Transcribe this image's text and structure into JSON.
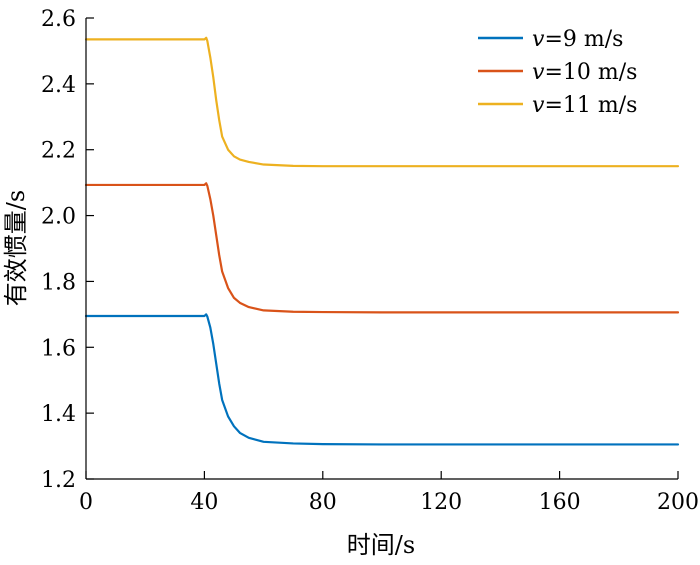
{
  "chart_data": {
    "type": "line",
    "title": "",
    "xlabel": "时间/s",
    "ylabel": "有效惯量/s",
    "xlim": [
      0,
      200
    ],
    "ylim": [
      1.2,
      2.6
    ],
    "xticks": [
      0,
      40,
      80,
      120,
      160,
      200
    ],
    "yticks": [
      1.2,
      1.4,
      1.6,
      1.8,
      2.0,
      2.2,
      2.4,
      2.6
    ],
    "xtick_labels": [
      "0",
      "40",
      "80",
      "120",
      "160",
      "200"
    ],
    "ytick_labels": [
      "1.2",
      "1.4",
      "1.6",
      "1.8",
      "2.0",
      "2.2",
      "2.4",
      "2.6"
    ],
    "grid": false,
    "legend_position": "top-right",
    "series": [
      {
        "name": "v=9 m/s",
        "legend_var": "v",
        "legend_rest": "=9 m/s",
        "color": "#0072BD",
        "x": [
          0,
          40,
          40.6,
          41,
          42,
          43,
          44,
          45,
          46,
          48,
          50,
          52,
          55,
          60,
          70,
          80,
          100,
          120,
          160,
          200
        ],
        "y": [
          1.695,
          1.695,
          1.7,
          1.693,
          1.66,
          1.61,
          1.55,
          1.49,
          1.44,
          1.39,
          1.36,
          1.34,
          1.325,
          1.313,
          1.308,
          1.306,
          1.305,
          1.305,
          1.305,
          1.305
        ]
      },
      {
        "name": "v=10 m/s",
        "legend_var": "v",
        "legend_rest": "=10 m/s",
        "color": "#D95319",
        "x": [
          0,
          40,
          40.6,
          41,
          42,
          43,
          44,
          45,
          46,
          48,
          50,
          52,
          55,
          60,
          70,
          80,
          100,
          120,
          160,
          200
        ],
        "y": [
          2.093,
          2.093,
          2.098,
          2.09,
          2.05,
          2.0,
          1.94,
          1.88,
          1.83,
          1.78,
          1.75,
          1.735,
          1.722,
          1.712,
          1.708,
          1.707,
          1.706,
          1.706,
          1.706,
          1.706
        ]
      },
      {
        "name": "v=11 m/s",
        "legend_var": "v",
        "legend_rest": "=11 m/s",
        "color": "#EDB120",
        "x": [
          0,
          40,
          40.6,
          41,
          42,
          43,
          44,
          45,
          46,
          48,
          50,
          52,
          55,
          60,
          70,
          80,
          100,
          120,
          160,
          200
        ],
        "y": [
          2.535,
          2.535,
          2.54,
          2.53,
          2.48,
          2.42,
          2.35,
          2.29,
          2.24,
          2.2,
          2.18,
          2.17,
          2.163,
          2.155,
          2.151,
          2.15,
          2.15,
          2.15,
          2.15,
          2.15
        ]
      }
    ]
  }
}
